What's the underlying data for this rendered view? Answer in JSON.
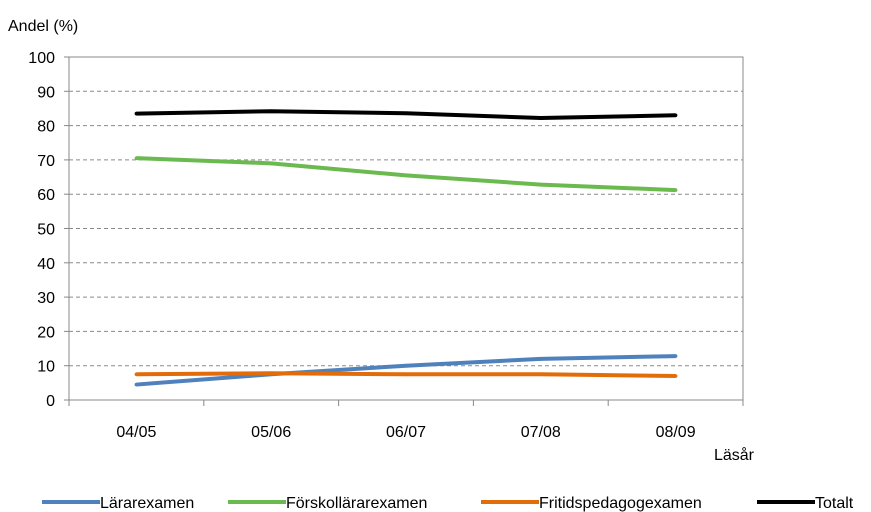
{
  "chart_data": {
    "type": "line",
    "ylabel": "Andel (%)",
    "xlabel": "Läsår",
    "categories": [
      "04/05",
      "05/06",
      "06/07",
      "07/08",
      "08/09"
    ],
    "ylim": [
      0,
      100
    ],
    "yticks": [
      0,
      10,
      20,
      30,
      40,
      50,
      60,
      70,
      80,
      90,
      100
    ],
    "grid": "horizontal dashed",
    "legend_position": "bottom",
    "series": [
      {
        "name": "Lärarexamen",
        "color": "#4F81BD",
        "values": [
          4.5,
          7.5,
          10,
          12,
          12.8
        ]
      },
      {
        "name": "Förskollärarexamen",
        "color": "#6BBA4F",
        "values": [
          70.5,
          69,
          65.5,
          62.8,
          61.2
        ]
      },
      {
        "name": "Fritidspedagogexamen",
        "color": "#E36C0A",
        "values": [
          7.5,
          7.8,
          7.5,
          7.5,
          7.0
        ]
      },
      {
        "name": "Totalt",
        "color": "#000000",
        "values": [
          83.5,
          84.2,
          83.6,
          82.2,
          83.0
        ]
      }
    ]
  }
}
